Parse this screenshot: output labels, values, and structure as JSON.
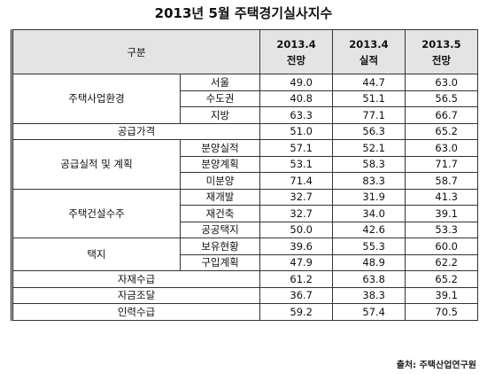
{
  "title": "2013년 5월 주택경기실사지수",
  "header": {
    "category": "구분",
    "columns": [
      [
        "2013.4",
        "전망"
      ],
      [
        "2013.4",
        "실적"
      ],
      [
        "2013.5",
        "전망"
      ]
    ]
  },
  "groups": [
    {
      "label": "주택사업환경",
      "items": [
        {
          "label": "서울",
          "values": [
            "49.0",
            "44.7",
            "63.0"
          ]
        },
        {
          "label": "수도권",
          "values": [
            "40.8",
            "51.1",
            "56.5"
          ]
        },
        {
          "label": "지방",
          "values": [
            "63.3",
            "77.1",
            "66.7"
          ]
        }
      ]
    },
    {
      "label": "공급가격",
      "values": [
        "51.0",
        "56.3",
        "65.2"
      ]
    },
    {
      "label": "공급실적 및 계획",
      "items": [
        {
          "label": "분양실적",
          "values": [
            "57.1",
            "52.1",
            "63.0"
          ]
        },
        {
          "label": "분양계획",
          "values": [
            "53.1",
            "58.3",
            "71.7"
          ]
        },
        {
          "label": "미분양",
          "values": [
            "71.4",
            "83.3",
            "58.7"
          ]
        }
      ]
    },
    {
      "label": "주택건설수주",
      "items": [
        {
          "label": "재개발",
          "values": [
            "32.7",
            "31.9",
            "41.3"
          ]
        },
        {
          "label": "재건축",
          "values": [
            "32.7",
            "34.0",
            "39.1"
          ]
        },
        {
          "label": "공공택지",
          "values": [
            "50.0",
            "42.6",
            "53.3"
          ]
        }
      ]
    },
    {
      "label": "택지",
      "items": [
        {
          "label": "보유현황",
          "values": [
            "39.6",
            "55.3",
            "60.0"
          ]
        },
        {
          "label": "구입계획",
          "values": [
            "47.9",
            "48.9",
            "62.2"
          ]
        }
      ]
    },
    {
      "label": "자재수급",
      "values": [
        "61.2",
        "63.8",
        "65.2"
      ]
    },
    {
      "label": "자금조달",
      "values": [
        "36.7",
        "38.3",
        "39.1"
      ]
    },
    {
      "label": "인력수급",
      "values": [
        "59.2",
        "57.4",
        "70.5"
      ]
    }
  ],
  "source": "출처: 주택산업연구원"
}
